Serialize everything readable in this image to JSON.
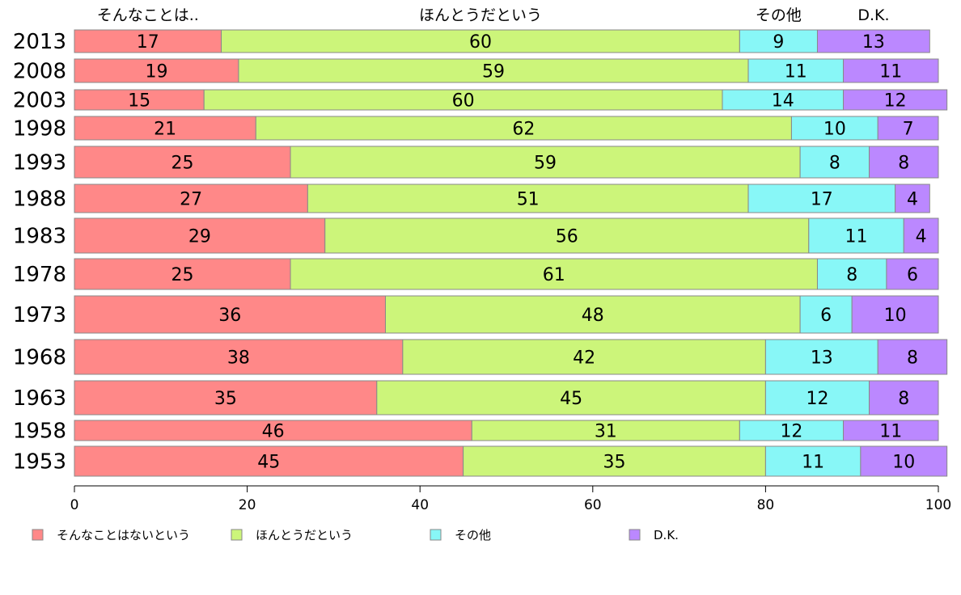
{
  "chart_data": {
    "type": "bar",
    "orientation": "horizontal",
    "stacked": true,
    "categories": [
      "2013",
      "2008",
      "2003",
      "1998",
      "1993",
      "1988",
      "1983",
      "1978",
      "1973",
      "1968",
      "1963",
      "1958",
      "1953"
    ],
    "series": [
      {
        "name": "そんなことはないという",
        "color": "#ff8888",
        "values": [
          17,
          19,
          15,
          21,
          25,
          27,
          29,
          25,
          36,
          38,
          35,
          46,
          45
        ]
      },
      {
        "name": "ほんとうだという",
        "color": "#ccf57a",
        "values": [
          60,
          59,
          60,
          62,
          59,
          51,
          56,
          61,
          48,
          42,
          45,
          31,
          35
        ]
      },
      {
        "name": "その他",
        "color": "#88f7f7",
        "values": [
          9,
          11,
          14,
          10,
          8,
          17,
          11,
          8,
          6,
          13,
          12,
          12,
          11
        ]
      },
      {
        "name": "D.K.",
        "color": "#bb88ff",
        "values": [
          13,
          11,
          12,
          7,
          8,
          4,
          4,
          6,
          10,
          8,
          8,
          11,
          10
        ]
      }
    ],
    "column_headers": [
      "そんなことは..",
      "ほんとうだという",
      "その他",
      "D.K."
    ],
    "xlim": [
      0,
      100
    ],
    "xticks": [
      0,
      20,
      40,
      60,
      80,
      100
    ],
    "legend_position": "bottom",
    "grid": false
  }
}
